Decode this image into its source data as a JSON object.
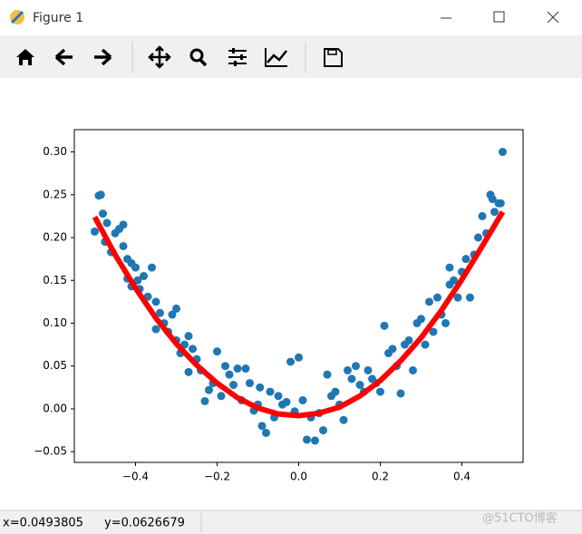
{
  "window": {
    "title": "Figure 1",
    "status_x": "x=0.0493805",
    "status_y": "y=0.0626679",
    "watermark": "@51CTO博客"
  },
  "chart_data": {
    "type": "scatter",
    "xlim": [
      -0.55,
      0.55
    ],
    "ylim": [
      -0.0625,
      0.326
    ],
    "xticks": [
      {
        "value": -0.4,
        "label": "−0.4"
      },
      {
        "value": -0.2,
        "label": "−0.2"
      },
      {
        "value": 0,
        "label": "0.0"
      },
      {
        "value": 0.2,
        "label": "0.2"
      },
      {
        "value": 0.4,
        "label": "0.4"
      }
    ],
    "yticks": [
      {
        "value": -0.05,
        "label": "−0.05"
      },
      {
        "value": 0,
        "label": "0.00"
      },
      {
        "value": 0.05,
        "label": "0.05"
      },
      {
        "value": 0.1,
        "label": "0.10"
      },
      {
        "value": 0.15,
        "label": "0.15"
      },
      {
        "value": 0.2,
        "label": "0.20"
      },
      {
        "value": 0.25,
        "label": "0.25"
      },
      {
        "value": 0.3,
        "label": "0.30"
      }
    ],
    "grid": false,
    "series": [
      {
        "type": "scatter",
        "color": "#1f77b4",
        "x": [
          -0.5,
          -0.49,
          -0.485,
          -0.48,
          -0.47,
          -0.475,
          -0.46,
          -0.45,
          -0.44,
          -0.43,
          -0.43,
          -0.42,
          -0.41,
          -0.4,
          -0.395,
          -0.42,
          -0.41,
          -0.39,
          -0.38,
          -0.37,
          -0.36,
          -0.35,
          -0.34,
          -0.33,
          -0.35,
          -0.32,
          -0.31,
          -0.3,
          -0.3,
          -0.29,
          -0.28,
          -0.27,
          -0.26,
          -0.27,
          -0.25,
          -0.24,
          -0.23,
          -0.22,
          -0.21,
          -0.2,
          -0.19,
          -0.18,
          -0.17,
          -0.16,
          -0.15,
          -0.14,
          -0.13,
          -0.12,
          -0.11,
          -0.1,
          -0.095,
          -0.09,
          -0.08,
          -0.07,
          -0.06,
          -0.05,
          -0.04,
          -0.03,
          -0.02,
          -0.01,
          0,
          0.01,
          0.02,
          0.03,
          0.04,
          0.05,
          0.06,
          0.07,
          0.08,
          0.09,
          0.1,
          0.11,
          0.12,
          0.13,
          0.14,
          0.15,
          0.16,
          0.17,
          0.18,
          0.19,
          0.2,
          0.21,
          0.22,
          0.23,
          0.24,
          0.25,
          0.26,
          0.27,
          0.28,
          0.29,
          0.3,
          0.31,
          0.32,
          0.33,
          0.34,
          0.35,
          0.36,
          0.37,
          0.37,
          0.38,
          0.39,
          0.4,
          0.41,
          0.42,
          0.43,
          0.44,
          0.45,
          0.46,
          0.47,
          0.475,
          0.48,
          0.49,
          0.495,
          0.5
        ],
        "values": [
          0.207,
          0.249,
          0.25,
          0.228,
          0.217,
          0.195,
          0.183,
          0.205,
          0.21,
          0.215,
          0.19,
          0.175,
          0.17,
          0.165,
          0.15,
          0.152,
          0.143,
          0.14,
          0.155,
          0.131,
          0.165,
          0.125,
          0.112,
          0.1,
          0.093,
          0.09,
          0.11,
          0.117,
          0.08,
          0.065,
          0.075,
          0.085,
          0.07,
          0.043,
          0.058,
          0.045,
          0.009,
          0.022,
          0.03,
          0.067,
          0.015,
          0.05,
          0.04,
          0.028,
          0.047,
          0.01,
          0.047,
          0.03,
          -0.002,
          0.005,
          0.025,
          -0.02,
          -0.028,
          0.02,
          -0.01,
          0.015,
          0.005,
          0.008,
          0.055,
          -0.003,
          0.06,
          0.01,
          -0.036,
          -0.01,
          -0.037,
          -0.005,
          -0.025,
          0.04,
          0.015,
          0.02,
          0.005,
          -0.013,
          0.045,
          0.035,
          0.05,
          0.028,
          0.02,
          0.045,
          0.035,
          0.03,
          0.02,
          0.097,
          0.065,
          0.07,
          0.05,
          0.018,
          0.075,
          0.08,
          0.045,
          0.1,
          0.105,
          0.075,
          0.125,
          0.09,
          0.13,
          0.11,
          0.1,
          0.145,
          0.165,
          0.15,
          0.13,
          0.16,
          0.175,
          0.13,
          0.18,
          0.2,
          0.225,
          0.205,
          0.25,
          0.245,
          0.23,
          0.24,
          0.24,
          0.3
        ]
      },
      {
        "type": "line",
        "color": "#ff0000",
        "x": [
          -0.5,
          -0.45,
          -0.4,
          -0.35,
          -0.3,
          -0.25,
          -0.2,
          -0.15,
          -0.1,
          -0.05,
          0,
          0.05,
          0.1,
          0.15,
          0.2,
          0.25,
          0.3,
          0.35,
          0.4,
          0.45,
          0.5
        ],
        "values": [
          0.224,
          0.18,
          0.141,
          0.106,
          0.076,
          0.051,
          0.03,
          0.013,
          0.001,
          -0.006,
          -0.008,
          -0.005,
          0.002,
          0.015,
          0.033,
          0.056,
          0.083,
          0.115,
          0.151,
          0.19,
          0.23
        ]
      }
    ]
  }
}
